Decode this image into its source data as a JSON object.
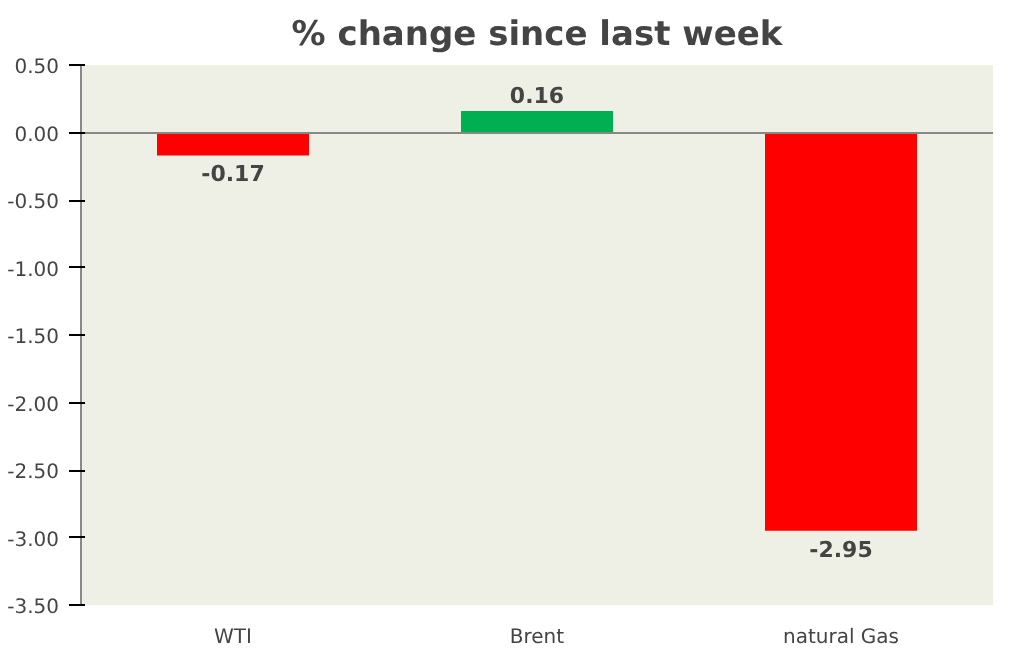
{
  "chart_data": {
    "type": "bar",
    "title": "% change since last week",
    "categories": [
      "WTI",
      "Brent",
      "natural Gas"
    ],
    "values": [
      -0.17,
      0.16,
      -2.95
    ],
    "colors": [
      "#ff0000",
      "#00b050",
      "#ff0000"
    ],
    "ylim": [
      -3.5,
      0.5
    ],
    "yticks": [
      {
        "value": 0.5,
        "label": "0.50"
      },
      {
        "value": 0.0,
        "label": "0.00"
      },
      {
        "value": -0.5,
        "label": "-0.50"
      },
      {
        "value": -1.0,
        "label": "-1.00"
      },
      {
        "value": -1.5,
        "label": "-1.50"
      },
      {
        "value": -2.0,
        "label": "-2.00"
      },
      {
        "value": -2.5,
        "label": "-2.50"
      },
      {
        "value": -3.0,
        "label": "-3.00"
      },
      {
        "value": -3.5,
        "label": "-3.50"
      }
    ],
    "data_labels": true
  }
}
